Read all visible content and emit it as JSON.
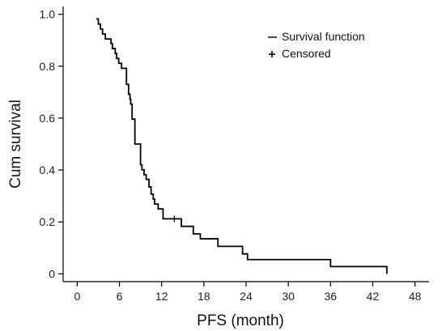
{
  "chart_data": {
    "type": "line",
    "title": "",
    "xlabel": "PFS (month)",
    "ylabel": "Cum survival",
    "xlim": [
      -2,
      50
    ],
    "ylim": [
      -0.03,
      1.03
    ],
    "xticks": [
      0,
      6,
      12,
      18,
      24,
      30,
      36,
      42,
      48
    ],
    "xtick_labels": [
      "0",
      "6",
      "12",
      "18",
      "24",
      "30",
      "36",
      "42",
      "48"
    ],
    "yticks": [
      0,
      0.2,
      0.4,
      0.6,
      0.8,
      1.0
    ],
    "ytick_labels": [
      "0",
      "0.2",
      "0.4",
      "0.6",
      "0.8",
      "1.0"
    ],
    "grid": false,
    "legend_position": "top-right",
    "legend": [
      {
        "marker": "line",
        "label": "Survival function"
      },
      {
        "marker": "plus",
        "label": "Censored"
      }
    ],
    "series": [
      {
        "name": "Survival function",
        "step": true,
        "x": [
          2.7,
          3.0,
          3.3,
          3.6,
          4.0,
          4.8,
          5.0,
          5.4,
          5.6,
          5.9,
          6.3,
          7.0,
          7.3,
          7.5,
          7.6,
          7.8,
          8.2,
          9.0,
          9.2,
          9.5,
          9.8,
          10.2,
          10.5,
          10.8,
          11.0,
          11.5,
          12.2,
          14.8,
          16.5,
          17.5,
          20.0,
          23.5,
          24.2,
          36.0,
          44.0
        ],
        "y": [
          0.982,
          0.962,
          0.943,
          0.924,
          0.905,
          0.887,
          0.868,
          0.849,
          0.83,
          0.811,
          0.792,
          0.73,
          0.692,
          0.673,
          0.654,
          0.596,
          0.5,
          0.42,
          0.401,
          0.382,
          0.364,
          0.335,
          0.307,
          0.288,
          0.269,
          0.25,
          0.212,
          0.183,
          0.154,
          0.135,
          0.106,
          0.077,
          0.055,
          0.028,
          0.0
        ]
      }
    ],
    "censored": {
      "name": "Censored",
      "x": [
        13.8
      ],
      "y": [
        0.212
      ]
    },
    "colors": {
      "line": "#000000",
      "axis": "#000000",
      "text": "#222222"
    }
  }
}
